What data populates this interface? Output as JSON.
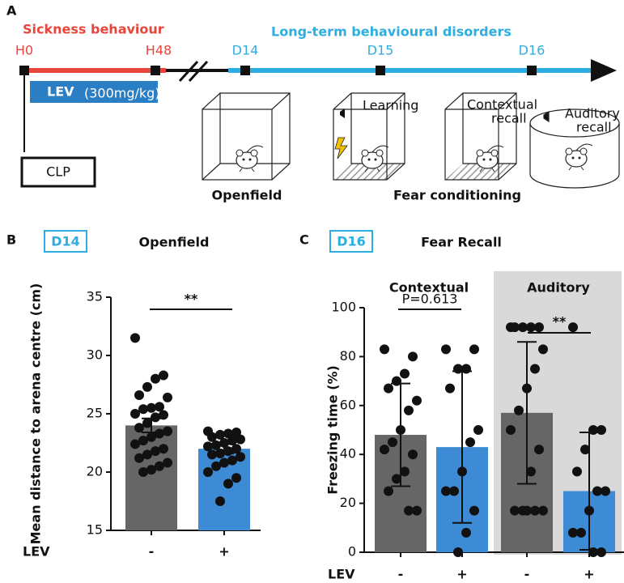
{
  "panel_a": {
    "label": "A",
    "phases": [
      "Sickness behaviour",
      "Long-term behavioural disorders"
    ],
    "timepoints": [
      "H0",
      "H48",
      "D14",
      "D15",
      "D16"
    ],
    "treatment": "LEV",
    "dose": "(300mg/kg)",
    "procedure": "CLP",
    "tests": [
      "Openfield",
      "Fear conditioning"
    ],
    "cage_labels": [
      [
        "Learning"
      ],
      [
        "Contextual",
        "recall"
      ],
      [
        "Auditory",
        "recall"
      ]
    ]
  },
  "chart_data": [
    {
      "type": "bar",
      "panel": "B",
      "tag": "D14",
      "title": "Openfield",
      "y_label": "Mean distance to arena centre (cm)",
      "x_label": "LEV",
      "categories": [
        "-",
        "+"
      ],
      "values": [
        24,
        22
      ],
      "errors": [
        0.6,
        0.4
      ],
      "colors": [
        "#666666",
        "#3d8bd4"
      ],
      "points": [
        [
          31.5,
          28.3,
          28,
          27.3,
          26.6,
          26.4,
          25.6,
          25.5,
          25.4,
          25,
          24.9,
          24.7,
          24.2,
          23.8,
          23.5,
          23.3,
          23,
          22.7,
          22.4,
          22,
          21.8,
          21.5,
          21.2,
          20.8,
          20.5,
          20.2,
          20
        ],
        [
          23.5,
          23.4,
          23.3,
          23.2,
          23,
          22.8,
          22.7,
          22.5,
          22.3,
          22.2,
          22,
          21.8,
          21.6,
          21.5,
          21.3,
          21,
          20.8,
          20.5,
          20,
          19.5,
          19,
          17.5
        ]
      ],
      "ylim": [
        15,
        35
      ],
      "yticks": [
        15,
        20,
        25,
        30,
        35
      ],
      "annotations": [
        "**"
      ]
    },
    {
      "type": "bar",
      "panel": "C",
      "tag": "D16",
      "title": "Fear Recall",
      "y_label": "Freezing time (%)",
      "x_label": "LEV",
      "groups": [
        "Contextual",
        "Auditory"
      ],
      "categories": [
        "-",
        "+",
        "-",
        "+"
      ],
      "values": [
        48,
        43,
        57,
        25
      ],
      "errors": [
        21,
        31,
        29,
        24
      ],
      "colors": [
        "#666666",
        "#3d8bd4",
        "#666666",
        "#3d8bd4"
      ],
      "points": [
        [
          83,
          80,
          73,
          70,
          67,
          62,
          58,
          50,
          45,
          42,
          40,
          33,
          30,
          25,
          17,
          17
        ],
        [
          83,
          83,
          75,
          75,
          67,
          50,
          45,
          33,
          25,
          25,
          17,
          8,
          0
        ],
        [
          92,
          92,
          92,
          92,
          92,
          83,
          75,
          67,
          58,
          50,
          42,
          33,
          17,
          17,
          17,
          17,
          17
        ],
        [
          92,
          50,
          50,
          42,
          33,
          25,
          25,
          17,
          8,
          8,
          0,
          0
        ]
      ],
      "ylim": [
        0,
        100
      ],
      "yticks": [
        0,
        20,
        40,
        60,
        80,
        100
      ],
      "annotations": [
        "P=0.613",
        "**"
      ]
    }
  ]
}
